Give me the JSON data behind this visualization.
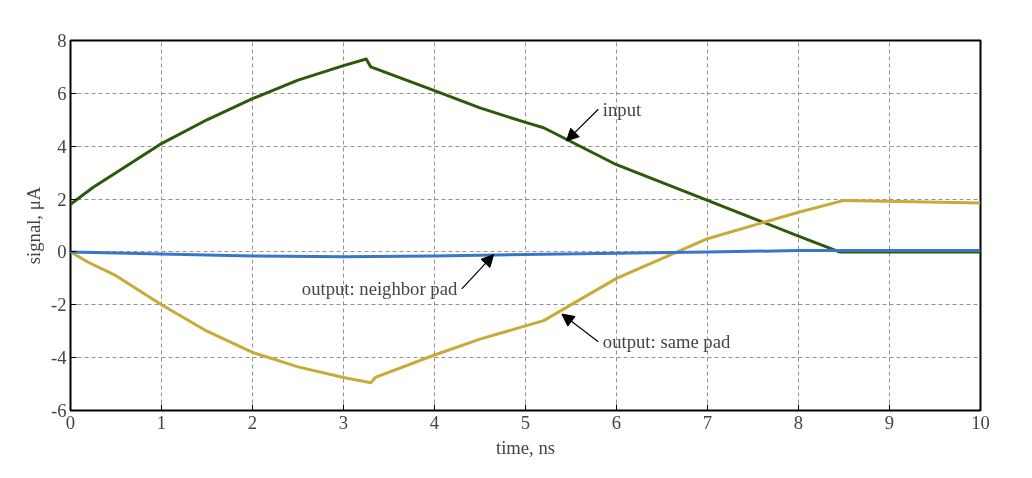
{
  "chart_data": {
    "type": "line",
    "xlabel": "time, ns",
    "ylabel": "signal, μA",
    "xlim": [
      0,
      10
    ],
    "ylim": [
      -6,
      8
    ],
    "xticks": [
      0,
      1,
      2,
      3,
      4,
      5,
      6,
      7,
      8,
      9,
      10
    ],
    "yticks": [
      -6,
      -4,
      -2,
      0,
      2,
      4,
      6,
      8
    ],
    "grid": true,
    "marker": "none",
    "line_style": "solid",
    "series": [
      {
        "color": "#2a5a0a",
        "x": [
          0,
          0.25,
          0.5,
          1,
          1.5,
          2,
          2.5,
          3,
          3.25,
          3.3,
          4,
          4.5,
          5,
          5.2,
          6,
          7,
          8,
          8.45,
          10
        ],
        "values": [
          1.8,
          2.45,
          3.0,
          4.1,
          5.0,
          5.8,
          6.5,
          7.05,
          7.3,
          7.0,
          6.1,
          5.45,
          4.9,
          4.7,
          3.3,
          1.95,
          0.6,
          0.0,
          0.0
        ]
      },
      {
        "color": "#c8aa38",
        "x": [
          0,
          0.2,
          0.5,
          1,
          1.5,
          2,
          2.5,
          3,
          3.3,
          3.35,
          4,
          4.5,
          5,
          5.2,
          6,
          7,
          8,
          8.5,
          10
        ],
        "values": [
          0,
          -0.4,
          -0.9,
          -2.0,
          -3.0,
          -3.8,
          -4.35,
          -4.75,
          -4.95,
          -4.75,
          -3.9,
          -3.3,
          -2.8,
          -2.6,
          -1.0,
          0.5,
          1.5,
          1.95,
          1.85
        ]
      },
      {
        "color": "#3a76c8",
        "x": [
          0,
          1,
          2,
          3,
          4,
          5,
          6,
          7,
          8,
          9,
          10
        ],
        "values": [
          0,
          -0.08,
          -0.15,
          -0.18,
          -0.15,
          -0.1,
          -0.05,
          0.0,
          0.05,
          0.05,
          0.05
        ]
      }
    ],
    "annotations": [
      {
        "text": "input",
        "x": 5.45,
        "y": 4.2
      },
      {
        "text": "output: neighbor pad",
        "x": 4.65,
        "y": -0.1
      },
      {
        "text": "output: same pad",
        "x": 5.4,
        "y": -2.35
      }
    ]
  }
}
